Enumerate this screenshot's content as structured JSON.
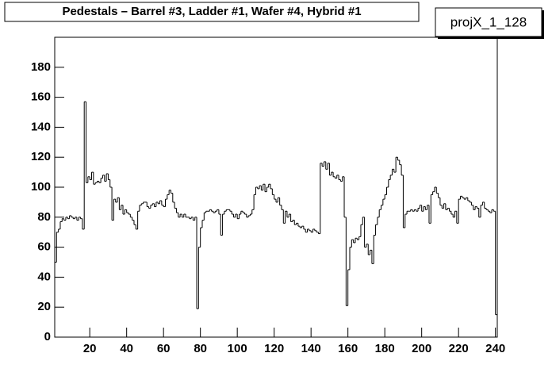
{
  "chart_data": {
    "type": "histogram",
    "title": "Pedestals – Barrel #3, Ladder #1, Wafer #4, Hybrid #1",
    "legend": "projX_1_128",
    "color": "#000000",
    "bins": [
      1,
      2,
      3,
      4,
      5,
      6,
      7,
      8,
      9,
      10,
      11,
      12,
      13,
      14,
      15,
      16,
      17,
      18,
      19,
      20,
      21,
      22,
      23,
      24,
      25,
      26,
      27,
      28,
      29,
      30,
      31,
      32,
      33,
      34,
      35,
      36,
      37,
      38,
      39,
      40,
      41,
      42,
      43,
      44,
      45,
      46,
      47,
      48,
      49,
      50,
      51,
      52,
      53,
      54,
      55,
      56,
      57,
      58,
      59,
      60,
      61,
      62,
      63,
      64,
      65,
      66,
      67,
      68,
      69,
      70,
      71,
      72,
      73,
      74,
      75,
      76,
      77,
      78,
      79,
      80,
      81,
      82,
      83,
      84,
      85,
      86,
      87,
      88,
      89,
      90,
      91,
      92,
      93,
      94,
      95,
      96,
      97,
      98,
      99,
      100,
      101,
      102,
      103,
      104,
      105,
      106,
      107,
      108,
      109,
      110,
      111,
      112,
      113,
      114,
      115,
      116,
      117,
      118,
      119,
      120,
      121,
      122,
      123,
      124,
      125,
      126,
      127,
      128,
      129,
      130,
      131,
      132,
      133,
      134,
      135,
      136,
      137,
      138,
      139,
      140,
      141,
      142,
      143,
      144,
      145,
      146,
      147,
      148,
      149,
      150,
      151,
      152,
      153,
      154,
      155,
      156,
      157,
      158,
      159,
      160,
      161,
      162,
      163,
      164,
      165,
      166,
      167,
      168,
      169,
      170,
      171,
      172,
      173,
      174,
      175,
      176,
      177,
      178,
      179,
      180,
      181,
      182,
      183,
      184,
      185,
      186,
      187,
      188,
      189,
      190,
      191,
      192,
      193,
      194,
      195,
      196,
      197,
      198,
      199,
      200,
      201,
      202,
      203,
      204,
      205,
      206,
      207,
      208,
      209,
      210,
      211,
      212,
      213,
      214,
      215,
      216,
      217,
      218,
      219,
      220,
      221,
      222,
      223,
      224,
      225,
      226,
      227,
      228,
      229,
      230,
      231,
      232,
      233,
      234,
      235,
      236,
      237,
      238,
      239,
      240,
      241
    ],
    "values": [
      50,
      70,
      72,
      77,
      79,
      78,
      80,
      79,
      81,
      80,
      79,
      80,
      78,
      80,
      79,
      72,
      157,
      103,
      107,
      105,
      110,
      102,
      103,
      104,
      103,
      106,
      108,
      104,
      109,
      105,
      100,
      78,
      92,
      90,
      93,
      85,
      88,
      82,
      85,
      83,
      82,
      80,
      78,
      75,
      72,
      84,
      88,
      89,
      90,
      90,
      87,
      86,
      88,
      89,
      87,
      90,
      89,
      91,
      88,
      87,
      92,
      95,
      98,
      96,
      90,
      86,
      83,
      80,
      82,
      80,
      82,
      80,
      80,
      79,
      80,
      78,
      80,
      19,
      60,
      73,
      78,
      83,
      84,
      84,
      85,
      84,
      83,
      84,
      85,
      82,
      68,
      82,
      84,
      85,
      85,
      84,
      82,
      80,
      82,
      79,
      82,
      84,
      83,
      82,
      80,
      81,
      82,
      85,
      95,
      100,
      99,
      101,
      98,
      102,
      97,
      100,
      102,
      99,
      95,
      92,
      90,
      93,
      88,
      85,
      76,
      84,
      80,
      82,
      77,
      78,
      75,
      76,
      74,
      73,
      74,
      72,
      70,
      72,
      71,
      70,
      72,
      71,
      70,
      69,
      116,
      114,
      117,
      112,
      116,
      108,
      110,
      107,
      106,
      108,
      105,
      104,
      107,
      80,
      21,
      45,
      60,
      65,
      63,
      66,
      65,
      67,
      75,
      80,
      60,
      62,
      55,
      58,
      49,
      68,
      75,
      80,
      85,
      88,
      92,
      95,
      100,
      105,
      108,
      112,
      110,
      120,
      118,
      115,
      108,
      73,
      82,
      84,
      84,
      85,
      84,
      85,
      84,
      86,
      88,
      84,
      87,
      85,
      88,
      76,
      95,
      97,
      100,
      96,
      93,
      88,
      86,
      89,
      85,
      86,
      84,
      82,
      80,
      84,
      76,
      92,
      94,
      93,
      92,
      93,
      91,
      90,
      88,
      85,
      87,
      86,
      80,
      88,
      90,
      86,
      85,
      84,
      83,
      85,
      84,
      15
    ],
    "xlim": [
      1,
      241
    ],
    "ylim": [
      0,
      200
    ],
    "xticks": [
      20,
      40,
      60,
      80,
      100,
      120,
      140,
      160,
      180,
      200,
      220,
      240
    ],
    "yticks": [
      0,
      20,
      40,
      60,
      80,
      100,
      120,
      140,
      160,
      180
    ]
  }
}
